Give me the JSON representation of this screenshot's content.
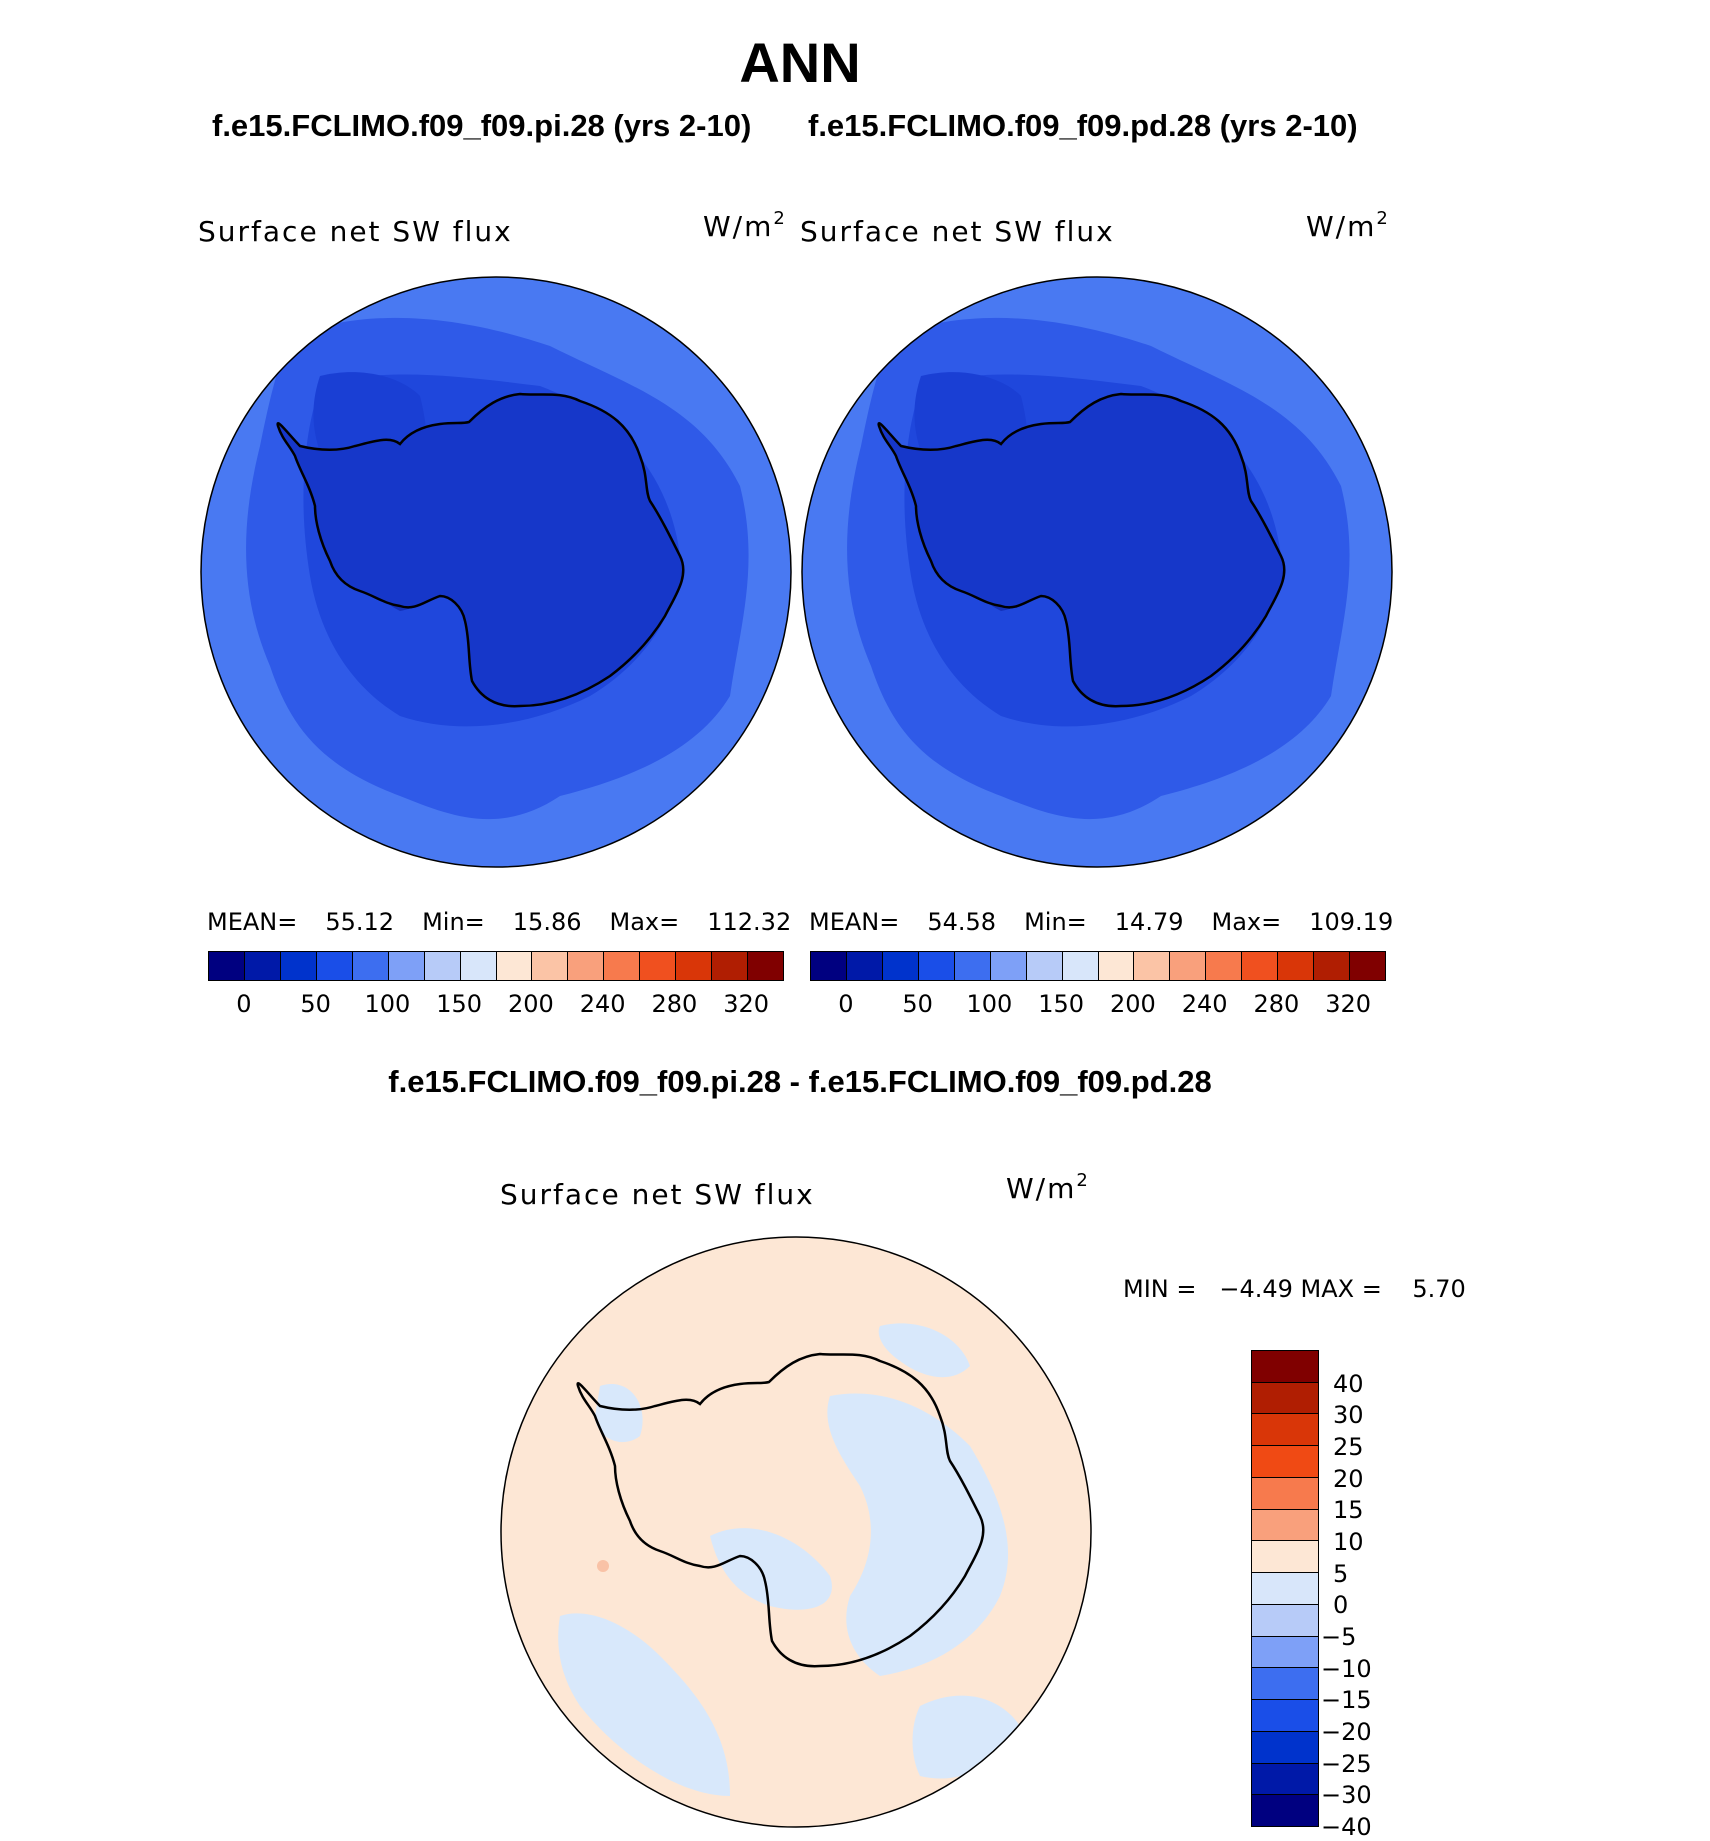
{
  "title": "ANN",
  "panels": {
    "left": {
      "case_label": "f.e15.FCLIMO.f09_f09.pi.28 (yrs 2-10)",
      "field": "Surface net SW flux",
      "units": "W/m",
      "units_exp": "2",
      "mean_label": "MEAN=",
      "mean": "55.12",
      "min_label": "Min=",
      "min": "15.86",
      "max_label": "Max=",
      "max": "112.32"
    },
    "right": {
      "case_label": "f.e15.FCLIMO.f09_f09.pd.28 (yrs 2-10)",
      "field": "Surface net SW flux",
      "units": "W/m",
      "units_exp": "2",
      "mean_label": "MEAN=",
      "mean": "54.58",
      "min_label": "Min=",
      "min": "14.79",
      "max_label": "Max=",
      "max": "109.19"
    },
    "diff": {
      "case_label": "f.e15.FCLIMO.f09_f09.pi.28 - f.e15.FCLIMO.f09_f09.pd.28",
      "field": "Surface net SW flux",
      "units": "W/m",
      "units_exp": "2",
      "minmax_text": "MIN =   −4.49 MAX =    5.70"
    }
  },
  "colorbars": {
    "abs": {
      "colors": [
        "#000080",
        "#0019a8",
        "#0033cc",
        "#1a4ee8",
        "#3d6ef0",
        "#7ea0f7",
        "#b7cbf8",
        "#d8e6fa",
        "#fde7d5",
        "#fbc4a6",
        "#f9a07c",
        "#f77a4d",
        "#f0501f",
        "#d93608",
        "#b01e02",
        "#800000"
      ],
      "tick_labels": [
        "0",
        "50",
        "100",
        "150",
        "200",
        "240",
        "280",
        "320"
      ]
    },
    "diff": {
      "colors_top_to_bottom": [
        "#800000",
        "#b01e02",
        "#d93608",
        "#f04a14",
        "#f77a4d",
        "#f9a07c",
        "#fde7d5",
        "#d8e6fa",
        "#b7cbf8",
        "#7ea0f7",
        "#3d6ef0",
        "#1a4ee8",
        "#0033cc",
        "#0019a8",
        "#000080"
      ],
      "tick_labels_top_to_bottom": [
        "40",
        "30",
        "25",
        "20",
        "15",
        "10",
        "5",
        "0",
        "−5",
        "−10",
        "−15",
        "−20",
        "−25",
        "−30",
        "−40"
      ]
    }
  },
  "map_colors": {
    "outer_ocean": "#4979f2",
    "middle_ocean": "#2f5ae8",
    "inner_ocean": "#1f47dc",
    "continent": "#1637c9",
    "darkest": "#1330b8",
    "diff_positive": "#fde7d5",
    "diff_negative": "#d8e8fb"
  }
}
